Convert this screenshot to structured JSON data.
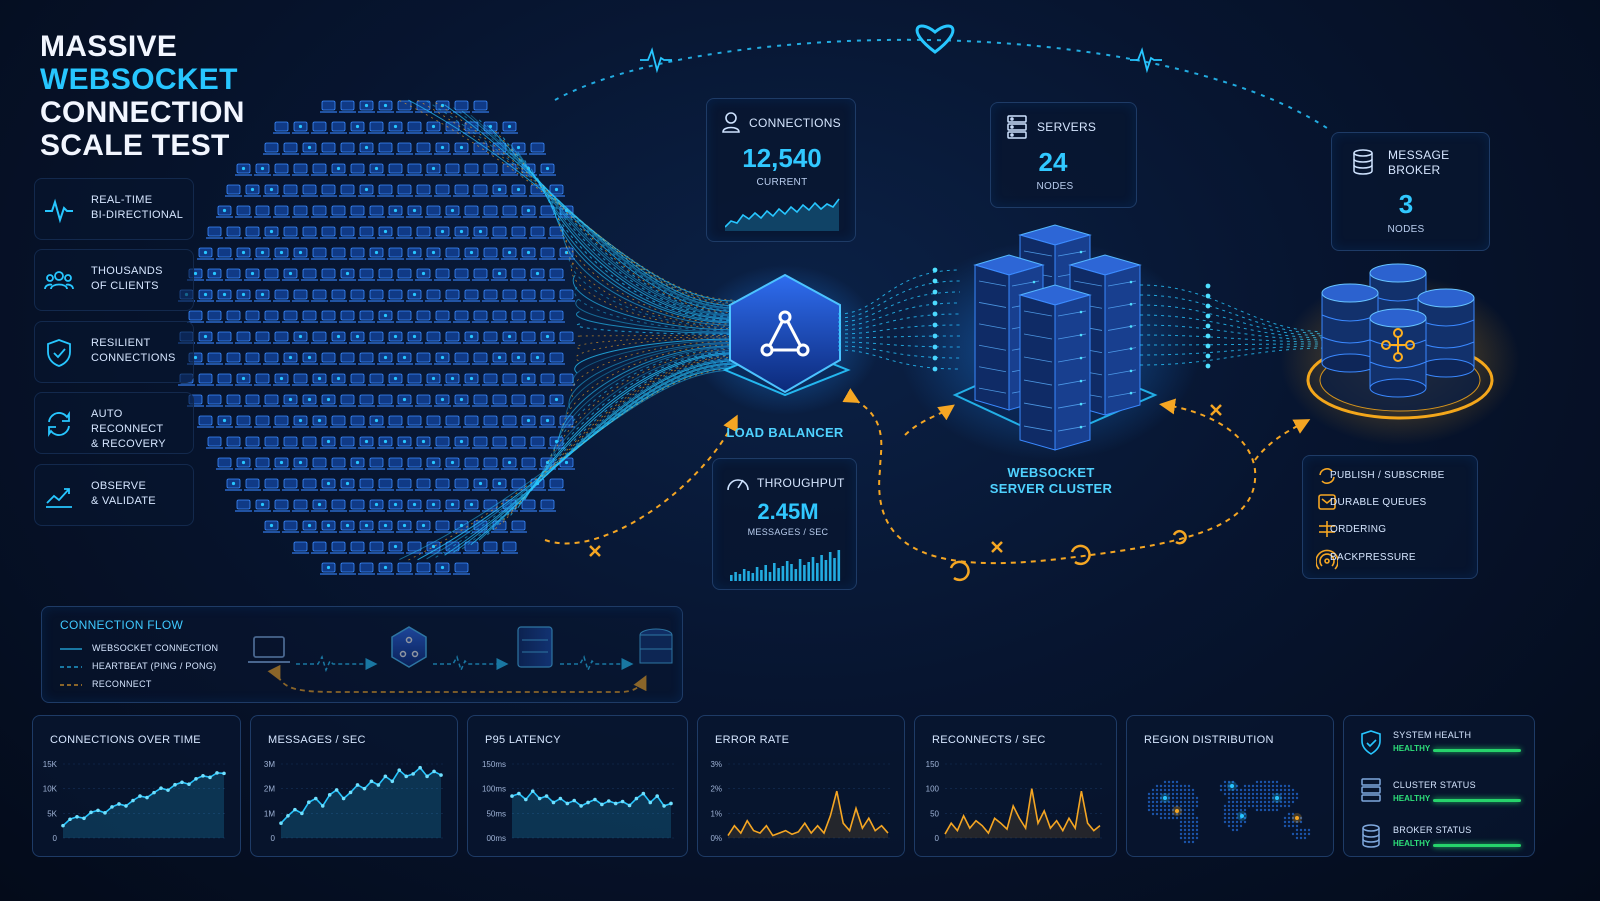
{
  "title": {
    "line1": "MASSIVE",
    "line2": "WEBSOCKET",
    "line3": "CONNECTION",
    "line4": "SCALE TEST"
  },
  "features": [
    {
      "icon": "pulse-icon",
      "line1": "REAL-TIME",
      "line2": "BI-DIRECTIONAL"
    },
    {
      "icon": "users-icon",
      "line1": "THOUSANDS",
      "line2": "OF CLIENTS"
    },
    {
      "icon": "shield-check-icon",
      "line1": "RESILIENT",
      "line2": "CONNECTIONS"
    },
    {
      "icon": "refresh-icon",
      "line1": "AUTO RECONNECT",
      "line2": "& RECOVERY"
    },
    {
      "icon": "chart-trend-icon",
      "line1": "OBSERVE",
      "line2": "& VALIDATE"
    }
  ],
  "connections_card": {
    "label": "CONNECTIONS",
    "value": "12,540",
    "sub": "CURRENT"
  },
  "servers_card": {
    "label": "SERVERS",
    "value": "24",
    "sub": "NODES"
  },
  "broker_card": {
    "label_line1": "MESSAGE",
    "label_line2": "BROKER",
    "value": "3",
    "sub": "NODES"
  },
  "throughput_card": {
    "label": "THROUGHPUT",
    "value": "2.45M",
    "sub": "MESSAGES / SEC"
  },
  "load_balancer_label": "LOAD BALANCER",
  "cluster_label": {
    "line1": "WEBSOCKET",
    "line2": "SERVER CLUSTER"
  },
  "broker_features": [
    "PUBLISH / SUBSCRIBE",
    "DURABLE QUEUES",
    "ORDERING",
    "BACKPRESSURE"
  ],
  "connection_flow": {
    "title": "CONNECTION FLOW",
    "legend": [
      "WEBSOCKET CONNECTION",
      "HEARTBEAT (PING / PONG)",
      "RECONNECT"
    ]
  },
  "colors": {
    "cyan": "#27c6ff",
    "orange": "#f5a623",
    "green": "#26d36b",
    "panel": "#081630"
  },
  "chart_data": [
    {
      "type": "area",
      "title": "CONNECTIONS OVER TIME",
      "ytick_labels": [
        "15K",
        "10K",
        "5K",
        "0"
      ],
      "ylim": [
        0,
        15000
      ],
      "values": [
        2500,
        3800,
        4300,
        4000,
        5200,
        5600,
        5100,
        6300,
        6900,
        6500,
        7600,
        8500,
        8200,
        9200,
        10100,
        9700,
        10800,
        11300,
        10900,
        12000,
        12600,
        12300,
        13200,
        13100
      ]
    },
    {
      "type": "area",
      "title": "MESSAGES / SEC",
      "ytick_labels": [
        "3M",
        "2M",
        "1M",
        "0"
      ],
      "ylim": [
        0,
        3000000
      ],
      "values": [
        600000,
        900000,
        1150000,
        1000000,
        1450000,
        1600000,
        1300000,
        1750000,
        1950000,
        1600000,
        1850000,
        2150000,
        2000000,
        2300000,
        2150000,
        2500000,
        2300000,
        2750000,
        2500000,
        2600000,
        2850000,
        2500000,
        2700000,
        2550000
      ]
    },
    {
      "type": "area",
      "title": "P95 LATENCY",
      "ytick_labels": [
        "150ms",
        "100ms",
        "50ms",
        "00ms"
      ],
      "ylim": [
        0,
        150
      ],
      "values": [
        85,
        90,
        78,
        95,
        80,
        85,
        72,
        80,
        70,
        76,
        65,
        72,
        78,
        68,
        75,
        70,
        74,
        66,
        80,
        90,
        72,
        85,
        65,
        70
      ]
    },
    {
      "type": "area",
      "title": "ERROR RATE",
      "ytick_labels": [
        "3%",
        "2%",
        "1%",
        "0%"
      ],
      "ylim": [
        0,
        3
      ],
      "values": [
        0.1,
        0.5,
        0.2,
        0.7,
        0.3,
        0.2,
        0.5,
        0.1,
        0.2,
        0.3,
        0.15,
        0.25,
        0.6,
        0.2,
        0.5,
        0.2,
        0.9,
        1.9,
        0.6,
        0.3,
        1.2,
        0.4,
        0.8,
        0.3,
        0.5,
        0.2
      ]
    },
    {
      "type": "area",
      "title": "RECONNECTS / SEC",
      "ytick_labels": [
        "150",
        "100",
        "50",
        "0"
      ],
      "ylim": [
        0,
        150
      ],
      "values": [
        8,
        30,
        15,
        45,
        20,
        35,
        25,
        10,
        40,
        30,
        18,
        65,
        40,
        20,
        100,
        30,
        55,
        20,
        35,
        15,
        40,
        20,
        95,
        30,
        15,
        25
      ]
    }
  ],
  "region_distribution": {
    "title": "REGION DISTRIBUTION"
  },
  "health": [
    {
      "icon": "shield-icon",
      "name": "SYSTEM HEALTH",
      "status": "HEALTHY"
    },
    {
      "icon": "server-icon",
      "name": "CLUSTER STATUS",
      "status": "HEALTHY"
    },
    {
      "icon": "database-icon",
      "name": "BROKER STATUS",
      "status": "HEALTHY"
    }
  ]
}
